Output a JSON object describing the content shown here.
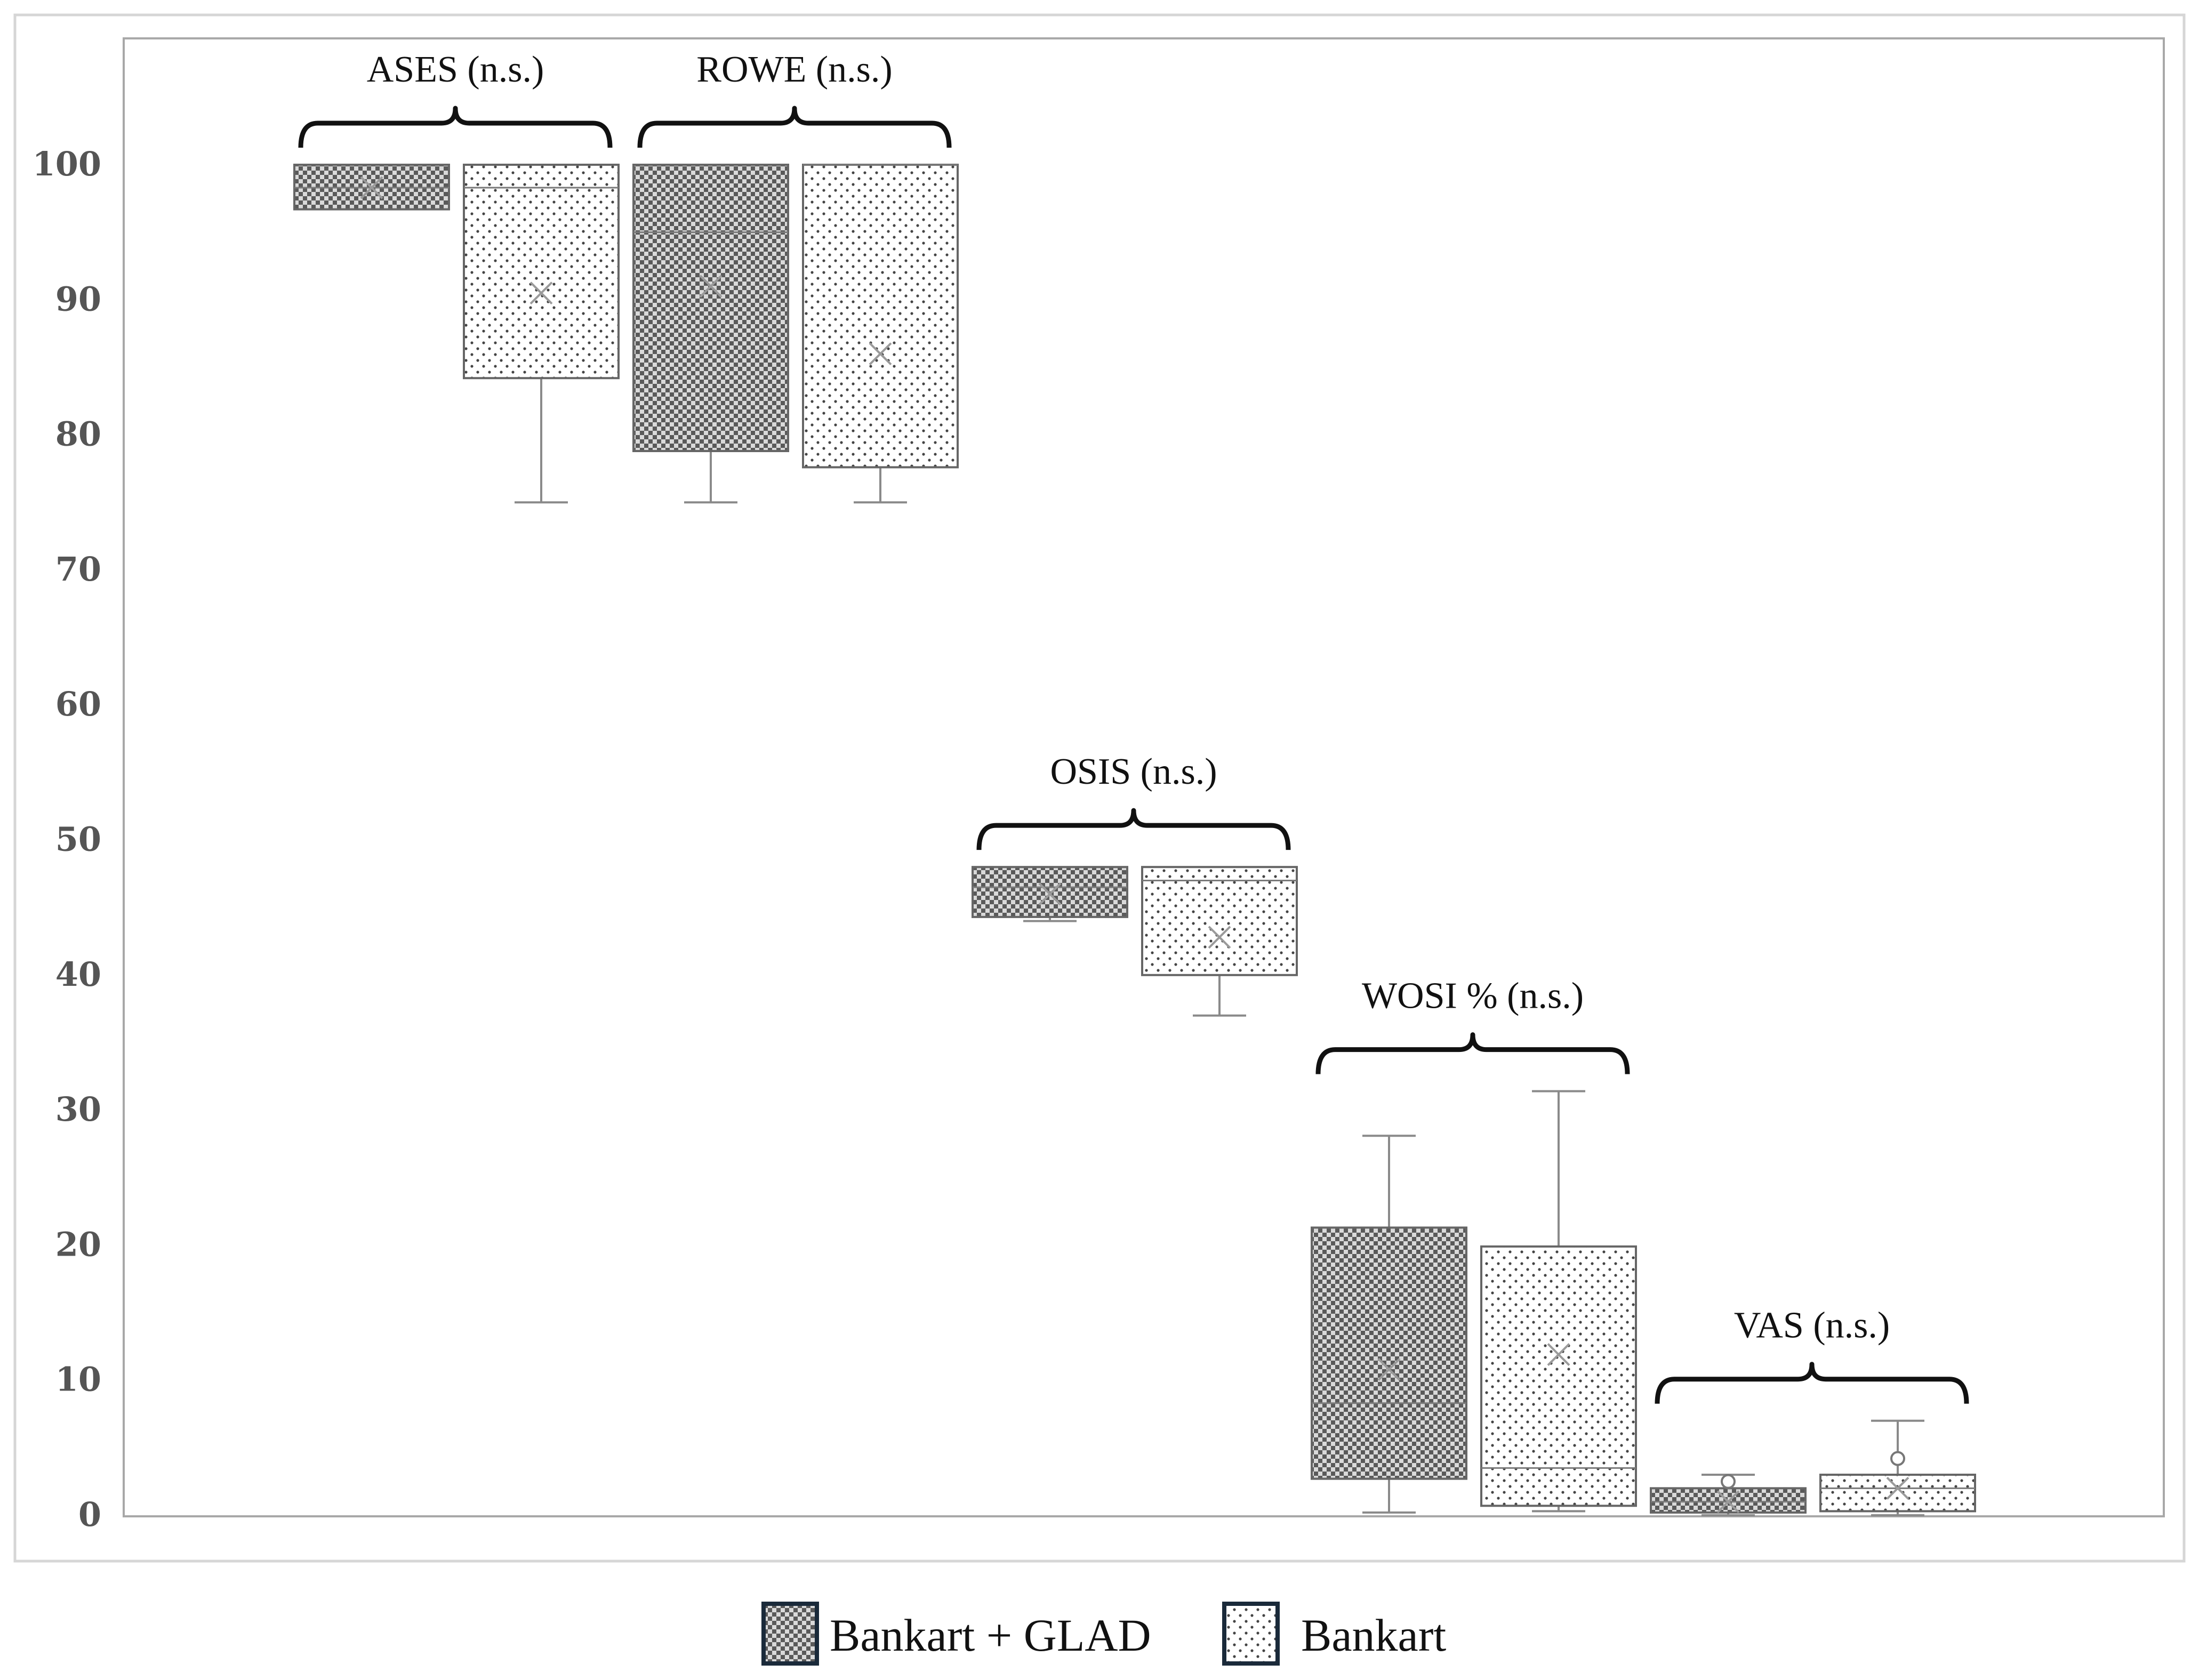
{
  "chart_data": {
    "type": "boxplot",
    "title": "",
    "xlabel": "",
    "ylabel": "",
    "ylim": [
      0,
      100
    ],
    "yticks": [
      0,
      10,
      20,
      30,
      40,
      50,
      60,
      70,
      80,
      90,
      100
    ],
    "grid": false,
    "legend_position": "bottom",
    "series": [
      {
        "name": "Bankart + GLAD",
        "pattern": "checker-dense",
        "color": "#444444"
      },
      {
        "name": "Bankart",
        "pattern": "dots-sparse",
        "color": "#444444"
      }
    ],
    "groups": [
      {
        "label": "ASES (n.s.)",
        "boxes": [
          {
            "series": "Bankart + GLAD",
            "min": 96.7,
            "q1": 96.7,
            "median": 98.3,
            "q3": 100,
            "max": 100,
            "mean": 98.3
          },
          {
            "series": "Bankart",
            "min": 75,
            "q1": 84.2,
            "median": 98.3,
            "q3": 100,
            "max": 100,
            "mean": 90.5
          }
        ]
      },
      {
        "label": "ROWE (n.s.)",
        "boxes": [
          {
            "series": "Bankart + GLAD",
            "min": 75,
            "q1": 78.8,
            "median": 95,
            "q3": 100,
            "max": 100,
            "mean": 91
          },
          {
            "series": "Bankart",
            "min": 75,
            "q1": 77.6,
            "median": 100,
            "q3": 100,
            "max": 100,
            "mean": 86
          }
        ]
      },
      {
        "label": "OSIS (n.s.)",
        "boxes": [
          {
            "series": "Bankart + GLAD",
            "min": 44,
            "q1": 44.3,
            "median": 46.5,
            "q3": 48,
            "max": 48,
            "mean": 46
          },
          {
            "series": "Bankart",
            "min": 37,
            "q1": 40,
            "median": 47,
            "q3": 48,
            "max": 48,
            "mean": 42.8
          }
        ]
      },
      {
        "label": "WOSI % (n.s.)",
        "boxes": [
          {
            "series": "Bankart + GLAD",
            "min": 0.2,
            "q1": 2.7,
            "median": 8.3,
            "q3": 21.3,
            "max": 28.1,
            "mean": 10.8
          },
          {
            "series": "Bankart",
            "min": 0.3,
            "q1": 0.7,
            "median": 3.5,
            "q3": 19.9,
            "max": 31.4,
            "mean": 11.9
          }
        ]
      },
      {
        "label": "VAS (n.s.)",
        "boxes": [
          {
            "series": "Bankart + GLAD",
            "min": 0,
            "q1": 0.2,
            "median": 1.0,
            "q3": 2.0,
            "max": 3.0,
            "mean": 1.0,
            "outliers": [
              2.5
            ]
          },
          {
            "series": "Bankart",
            "min": 0,
            "q1": 0.3,
            "median": 2.0,
            "q3": 3.0,
            "max": 7.0,
            "mean": 2.0,
            "outliers": [
              4.2
            ]
          }
        ]
      }
    ]
  }
}
